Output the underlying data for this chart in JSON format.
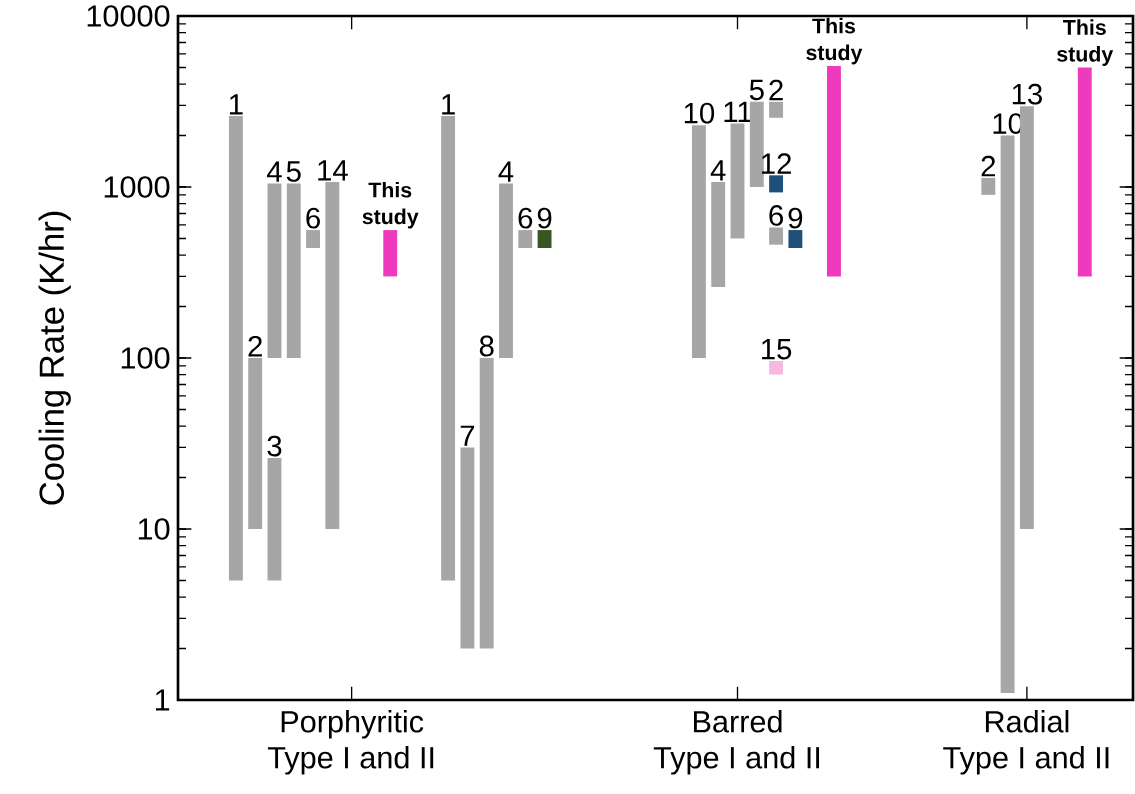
{
  "chart_data": {
    "type": "bar",
    "ylabel": "Cooling Rate (K/hr)",
    "log": "y",
    "ylim": [
      1,
      10000
    ],
    "yticks": [
      1,
      10,
      100,
      1000,
      10000
    ],
    "categories": [
      null,
      null,
      null,
      null,
      null,
      null,
      null,
      null,
      null,
      "Porphyritic Type I and II",
      null,
      null,
      null,
      null,
      null,
      null,
      null,
      null,
      null,
      null,
      null,
      null,
      null,
      null,
      null,
      null,
      null,
      null,
      null,
      "Barred Type I and II",
      null,
      null,
      null,
      null,
      null,
      null,
      null,
      null,
      null,
      null,
      null,
      null,
      null,
      null,
      "Radial Type I and II",
      null,
      null,
      null,
      null,
      null
    ],
    "annotations": [
      "1",
      "2",
      "4",
      "5",
      "6",
      "14",
      "1",
      "7",
      "8",
      "4",
      "6",
      "10",
      "4",
      "11",
      "5",
      "2",
      "2",
      "10",
      "13",
      "3",
      "6",
      "This study",
      "This study",
      "This study",
      "9",
      "12",
      "9",
      "15"
    ],
    "series": [
      {
        "color": "#a6a6a6",
        "base": [
          null,
          null,
          null,
          5,
          10,
          100,
          100,
          440,
          10,
          null,
          null,
          null,
          null,
          null,
          5,
          2,
          2,
          100,
          440,
          null,
          null,
          null,
          null,
          null,
          null,
          null,
          null,
          100,
          260,
          500,
          1000,
          2540,
          null,
          null,
          null,
          null,
          null,
          null,
          null,
          null,
          null,
          null,
          900,
          1.1,
          10,
          null,
          null,
          null,
          null,
          null
        ],
        "values": [
          null,
          null,
          null,
          2595,
          90,
          950,
          950,
          120,
          1060,
          null,
          null,
          null,
          null,
          null,
          2595,
          28,
          98,
          950,
          120,
          null,
          null,
          null,
          null,
          null,
          null,
          null,
          null,
          2200,
          810,
          1850,
          2150,
          610,
          null,
          null,
          null,
          null,
          null,
          null,
          null,
          null,
          null,
          null,
          230,
          1998.9,
          2960,
          null,
          null,
          null,
          null,
          null
        ]
      },
      {
        "color": "#a6a6a6",
        "base": [
          null,
          null,
          null,
          null,
          null,
          5,
          null,
          null,
          null,
          null,
          null,
          null,
          null,
          null,
          null,
          null,
          null,
          null,
          null,
          null,
          null,
          null,
          null,
          null,
          null,
          null,
          null,
          null,
          null,
          null,
          null,
          460,
          null,
          null,
          null,
          null,
          null,
          null,
          null,
          null,
          null,
          null,
          null,
          null,
          null,
          null,
          null,
          null,
          null,
          null
        ],
        "values": [
          null,
          null,
          null,
          null,
          null,
          21,
          null,
          null,
          null,
          null,
          null,
          null,
          null,
          null,
          null,
          null,
          null,
          null,
          null,
          null,
          null,
          null,
          null,
          null,
          null,
          null,
          null,
          null,
          null,
          null,
          null,
          120,
          null,
          null,
          null,
          null,
          null,
          null,
          null,
          null,
          null,
          null,
          null,
          null,
          null,
          null,
          null,
          null,
          null,
          null
        ]
      },
      {
        "color": "#ee3bbd",
        "base": [
          null,
          null,
          null,
          null,
          null,
          null,
          null,
          null,
          null,
          null,
          null,
          300,
          null,
          null,
          null,
          null,
          null,
          null,
          null,
          null,
          null,
          null,
          null,
          null,
          null,
          null,
          null,
          null,
          null,
          null,
          null,
          null,
          null,
          null,
          300,
          null,
          null,
          null,
          null,
          null,
          null,
          null,
          null,
          null,
          null,
          null,
          null,
          300,
          null,
          null
        ],
        "values": [
          null,
          null,
          null,
          null,
          null,
          null,
          null,
          null,
          null,
          null,
          null,
          260,
          null,
          null,
          null,
          null,
          null,
          null,
          null,
          null,
          null,
          null,
          null,
          null,
          null,
          null,
          null,
          null,
          null,
          null,
          null,
          null,
          null,
          null,
          4800,
          null,
          null,
          null,
          null,
          null,
          null,
          null,
          null,
          null,
          null,
          null,
          null,
          4700,
          null,
          null
        ]
      },
      {
        "color": "#375623",
        "base": [
          null,
          null,
          null,
          null,
          null,
          null,
          null,
          null,
          null,
          null,
          null,
          null,
          null,
          null,
          null,
          null,
          null,
          null,
          null,
          440,
          null,
          null,
          null,
          null,
          null,
          null,
          null,
          null,
          null,
          null,
          null,
          null,
          null,
          null,
          null,
          null,
          null,
          null,
          null,
          null,
          null,
          null,
          null,
          null,
          null,
          null,
          null,
          null,
          null,
          null
        ],
        "values": [
          null,
          null,
          null,
          null,
          null,
          null,
          null,
          null,
          null,
          null,
          null,
          null,
          null,
          null,
          null,
          null,
          null,
          null,
          null,
          120,
          null,
          null,
          null,
          null,
          null,
          null,
          null,
          null,
          null,
          null,
          null,
          null,
          null,
          null,
          null,
          null,
          null,
          null,
          null,
          null,
          null,
          null,
          null,
          null,
          null,
          null,
          null,
          null,
          null,
          null
        ]
      },
      {
        "color": "#1f4e79",
        "base": [
          null,
          null,
          null,
          null,
          null,
          null,
          null,
          null,
          null,
          null,
          null,
          null,
          null,
          null,
          null,
          null,
          null,
          null,
          null,
          null,
          null,
          null,
          null,
          null,
          null,
          null,
          null,
          null,
          null,
          null,
          null,
          930,
          440,
          null,
          null,
          null,
          null,
          null,
          null,
          null,
          null,
          null,
          null,
          null,
          null,
          null,
          null,
          null,
          null,
          null
        ],
        "values": [
          null,
          null,
          null,
          null,
          null,
          null,
          null,
          null,
          null,
          null,
          null,
          null,
          null,
          null,
          null,
          null,
          null,
          null,
          null,
          null,
          null,
          null,
          null,
          null,
          null,
          null,
          null,
          null,
          null,
          null,
          null,
          240,
          120,
          null,
          null,
          null,
          null,
          null,
          null,
          null,
          null,
          null,
          null,
          null,
          null,
          null,
          null,
          null,
          null,
          null
        ]
      },
      {
        "color": "#f7b8e4",
        "base": [
          null,
          null,
          null,
          null,
          null,
          null,
          null,
          null,
          null,
          null,
          null,
          null,
          null,
          null,
          null,
          null,
          null,
          null,
          null,
          null,
          null,
          null,
          null,
          null,
          null,
          null,
          null,
          null,
          null,
          null,
          null,
          80,
          null,
          null,
          null,
          null,
          null,
          null,
          null,
          null,
          null,
          null,
          null,
          null,
          null,
          null,
          null,
          null,
          null,
          null
        ],
        "values": [
          null,
          null,
          null,
          null,
          null,
          null,
          null,
          null,
          null,
          null,
          null,
          null,
          null,
          null,
          null,
          null,
          null,
          null,
          null,
          null,
          null,
          null,
          null,
          null,
          null,
          null,
          null,
          null,
          null,
          null,
          null,
          16,
          null,
          null,
          null,
          null,
          null,
          null,
          null,
          null,
          null,
          null,
          null,
          null,
          null,
          null,
          null,
          null,
          null,
          null
        ]
      }
    ]
  }
}
